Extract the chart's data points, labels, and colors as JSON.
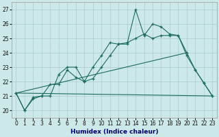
{
  "xlabel": "Humidex (Indice chaleur)",
  "background_color": "#cce8e8",
  "grid_color": "#aacccc",
  "line_color": "#1a6b5a",
  "xlim": [
    -0.5,
    23.5
  ],
  "ylim": [
    19.5,
    27.5
  ],
  "yticks": [
    20,
    21,
    22,
    23,
    24,
    25,
    26,
    27
  ],
  "xticks": [
    0,
    1,
    2,
    3,
    4,
    5,
    6,
    7,
    8,
    9,
    10,
    11,
    12,
    13,
    14,
    15,
    16,
    17,
    18,
    19,
    20,
    21,
    22,
    23
  ],
  "series1_x": [
    0,
    1,
    2,
    3,
    4,
    5,
    6,
    7,
    8,
    9,
    10,
    11,
    12,
    13,
    14,
    15,
    16,
    17,
    18,
    19,
    20,
    21,
    22,
    23
  ],
  "series1_y": [
    21.2,
    20.0,
    20.9,
    21.0,
    21.0,
    22.5,
    23.0,
    23.0,
    22.0,
    23.0,
    23.8,
    24.7,
    24.6,
    24.6,
    27.0,
    25.2,
    26.0,
    25.8,
    25.3,
    25.2,
    24.0,
    22.8,
    21.9,
    21.0
  ],
  "series2_x": [
    0,
    1,
    2,
    3,
    4,
    5,
    6,
    7,
    8,
    9,
    10,
    11,
    12,
    13,
    14,
    15,
    16,
    17,
    18,
    19,
    20,
    21,
    22,
    23
  ],
  "series2_y": [
    21.2,
    20.0,
    20.8,
    21.0,
    21.8,
    21.8,
    22.8,
    22.3,
    22.0,
    22.2,
    23.0,
    23.8,
    24.6,
    24.7,
    25.0,
    25.3,
    25.0,
    25.2,
    25.2,
    25.2,
    23.8,
    22.8,
    21.9,
    21.0
  ],
  "series3_x": [
    0,
    23
  ],
  "series3_y": [
    21.2,
    21.0
  ],
  "series4_x": [
    0,
    20
  ],
  "series4_y": [
    21.2,
    24.0
  ],
  "xlabel_color": "#000066",
  "tick_fontsize": 5.5,
  "xlabel_fontsize": 6.5
}
